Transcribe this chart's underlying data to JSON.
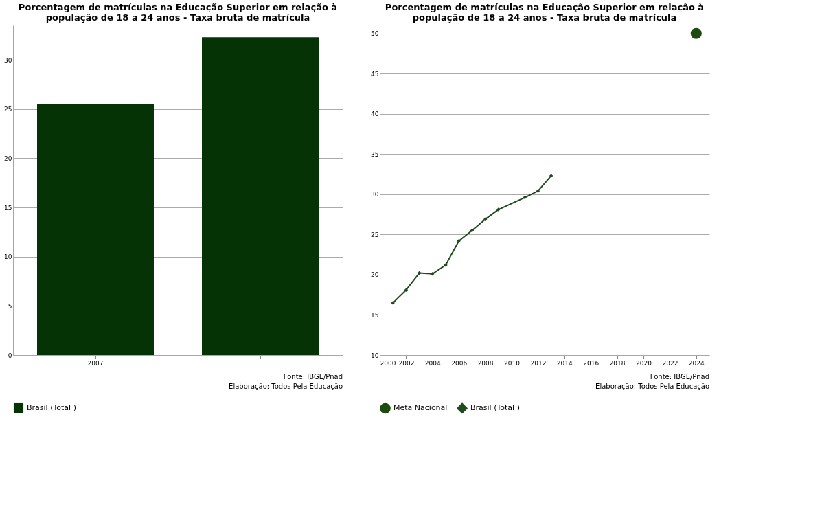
{
  "chart_data": [
    {
      "type": "bar",
      "title": "Porcentagem de matrículas na Educação Superior em relação à população de 18 a 24 anos - Taxa bruta de matrícula",
      "categories": [
        "2007",
        null
      ],
      "series": [
        {
          "name": "Brasil (Total )",
          "color": "#063306",
          "values": [
            25.5,
            32.3
          ]
        }
      ],
      "ylim": [
        0,
        33.5
      ],
      "yticks": [
        0,
        5,
        10,
        15,
        20,
        25,
        30
      ],
      "grid": "y",
      "legend": "bottom",
      "annotations": [
        "Fonte: IBGE/Pnad",
        "Elaboração: Todos Pela Educação"
      ]
    },
    {
      "type": "line",
      "title": "Porcentagem de matrículas na Educação Superior em relação à população de 18 a 24 anos - Taxa bruta de matrícula",
      "series": [
        {
          "name": "Meta Nacional",
          "type": "scatter",
          "marker": "circle",
          "color": "#1f4a10",
          "x": [
            2024
          ],
          "values": [
            50
          ]
        },
        {
          "name": "Brasil (Total )",
          "type": "line",
          "marker": "diamond",
          "color": "#1e4a1e",
          "x": [
            2001,
            2002,
            2003,
            2004,
            2005,
            2006,
            2007,
            2008,
            2009,
            2011,
            2012,
            2013
          ],
          "values": [
            16.5,
            18.1,
            20.2,
            20.1,
            21.2,
            24.2,
            25.5,
            26.9,
            28.1,
            29.6,
            30.4,
            32.3
          ]
        }
      ],
      "xlim": [
        2000,
        2025
      ],
      "xticks": [
        2000,
        2002,
        2004,
        2006,
        2008,
        2010,
        2012,
        2014,
        2016,
        2018,
        2020,
        2022,
        2024
      ],
      "ylim": [
        10,
        51
      ],
      "yticks": [
        10,
        15,
        20,
        25,
        30,
        35,
        40,
        45,
        50
      ],
      "grid": "y",
      "legend": "bottom",
      "annotations": [
        "Fonte: IBGE/Pnad",
        "Elaboração: Todos Pela Educação"
      ]
    }
  ]
}
